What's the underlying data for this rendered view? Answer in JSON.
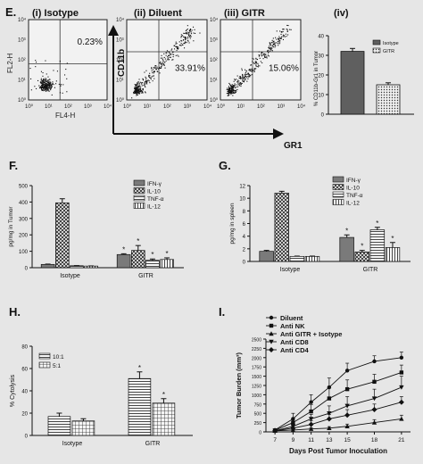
{
  "figure": {
    "panel_labels": [
      "E.",
      "F.",
      "G.",
      "H.",
      "I."
    ]
  },
  "panel_e": {
    "subtitles": [
      "(i) Isotype",
      "(ii) Diluent",
      "(iii) GITR",
      "(iv)"
    ],
    "facs": [
      {
        "ylabel": "FL2-H",
        "xlabel": "FL4-H",
        "percent": "0.23%",
        "quadrant": "upper-right"
      },
      {
        "ylabel": "CD11b",
        "xlabel": "",
        "percent": "33.91%",
        "quadrant": "lower-right"
      },
      {
        "ylabel": "",
        "xlabel": "",
        "percent": "15.06%",
        "quadrant": "lower-right"
      }
    ],
    "axis_labels": {
      "cd11b": "CD11b",
      "gr1": "GR1"
    },
    "tick_labels": [
      "10⁰",
      "10¹",
      "10²",
      "10³",
      "10⁴"
    ],
    "bar_ylabel": "% CD11b-Gr1 in Tumor",
    "legend": [
      "Isotype",
      "GITR"
    ]
  },
  "chart_data": [
    {
      "panel": "E-iv",
      "type": "bar",
      "categories": [
        "Isotype",
        "GITR"
      ],
      "values": [
        32,
        15
      ],
      "errors": [
        1.5,
        1
      ],
      "ylim": [
        0,
        40
      ],
      "yticks": [
        "0",
        "10",
        "20",
        "30",
        "40"
      ],
      "ylabel": "% CD11b-Gr1 in Tumor",
      "legend": "top-right"
    },
    {
      "panel": "F",
      "type": "bar",
      "categories": [
        "Isotype",
        "GITR"
      ],
      "series": [
        {
          "name": "IFN-γ",
          "values": [
            20,
            80
          ],
          "errors": [
            2,
            5
          ]
        },
        {
          "name": "IL-10",
          "values": [
            395,
            105
          ],
          "errors": [
            25,
            30
          ]
        },
        {
          "name": "TNF-α",
          "values": [
            12,
            45
          ],
          "errors": [
            1,
            8
          ]
        },
        {
          "name": "IL-12",
          "values": [
            10,
            50
          ],
          "errors": [
            1,
            10
          ]
        }
      ],
      "ylim": [
        0,
        500
      ],
      "yticks": [
        "0",
        "100",
        "200",
        "300",
        "400",
        "500"
      ],
      "ylabel": "pg/mg in Tumor",
      "legend": "top-right",
      "annotations": [
        "*",
        "*",
        "*",
        "*"
      ]
    },
    {
      "panel": "G",
      "type": "bar",
      "categories": [
        "Isotype",
        "GITR"
      ],
      "series": [
        {
          "name": "IFN-γ",
          "values": [
            1.6,
            3.8
          ],
          "errors": [
            0.15,
            0.4
          ]
        },
        {
          "name": "IL-10",
          "values": [
            10.8,
            1.5
          ],
          "errors": [
            0.3,
            0.25
          ]
        },
        {
          "name": "TNF-α",
          "values": [
            0.8,
            5.0
          ],
          "errors": [
            0.05,
            0.4
          ]
        },
        {
          "name": "IL-12",
          "values": [
            0.8,
            2.2
          ],
          "errors": [
            0.05,
            0.8
          ]
        }
      ],
      "ylim": [
        0,
        12
      ],
      "yticks": [
        "0",
        "2",
        "4",
        "6",
        "8",
        "10",
        "12"
      ],
      "ylabel": "pg/mg in spleen",
      "legend": "top-right",
      "annotations": [
        "*",
        "*",
        "*",
        "*"
      ]
    },
    {
      "panel": "H",
      "type": "bar",
      "categories": [
        "Isotype",
        "GITR"
      ],
      "series": [
        {
          "name": "10:1",
          "values": [
            17,
            51
          ],
          "errors": [
            3,
            6
          ]
        },
        {
          "name": "5:1",
          "values": [
            13,
            29
          ],
          "errors": [
            2,
            4
          ]
        }
      ],
      "ylim": [
        0,
        80
      ],
      "yticks": [
        "0",
        "20",
        "40",
        "60",
        "80"
      ],
      "ylabel": "% Cytolysis",
      "legend": "top-left",
      "annotations": [
        "*",
        "*"
      ]
    },
    {
      "panel": "I",
      "type": "line",
      "x": [
        7,
        9,
        11,
        13,
        15,
        18,
        21
      ],
      "xticks": [
        "7",
        "9",
        "11",
        "13",
        "15",
        "18",
        "21"
      ],
      "series": [
        {
          "name": "Diluent",
          "marker": "circle",
          "values": [
            50,
            350,
            800,
            1200,
            1650,
            1900,
            2000
          ],
          "errors": [
            0,
            150,
            200,
            250,
            200,
            150,
            150
          ]
        },
        {
          "name": "Anti NK",
          "marker": "square",
          "values": [
            40,
            250,
            550,
            900,
            1150,
            1350,
            1600
          ],
          "errors": [
            0,
            120,
            180,
            300,
            250,
            200,
            200
          ]
        },
        {
          "name": "Anti GITR + Isotype",
          "marker": "triangle-up",
          "values": [
            30,
            50,
            80,
            100,
            150,
            250,
            350
          ],
          "errors": [
            0,
            20,
            30,
            40,
            60,
            80,
            100
          ]
        },
        {
          "name": "Anti CD8",
          "marker": "triangle-down",
          "values": [
            30,
            150,
            350,
            500,
            700,
            900,
            1200
          ],
          "errors": [
            0,
            80,
            120,
            200,
            250,
            250,
            300
          ]
        },
        {
          "name": "Anti CD4",
          "marker": "diamond",
          "values": [
            30,
            100,
            200,
            350,
            450,
            600,
            800
          ],
          "errors": [
            0,
            60,
            100,
            120,
            150,
            150,
            150
          ]
        }
      ],
      "ylim": [
        0,
        2500
      ],
      "yticks": [
        "0",
        "250",
        "500",
        "750",
        "1000",
        "1250",
        "1500",
        "1750",
        "2000",
        "2250",
        "2500"
      ],
      "xlabel": "Days Post Tumor Inoculation",
      "ylabel": "Tumor Burden (mm³)",
      "legend": "top-left"
    }
  ]
}
